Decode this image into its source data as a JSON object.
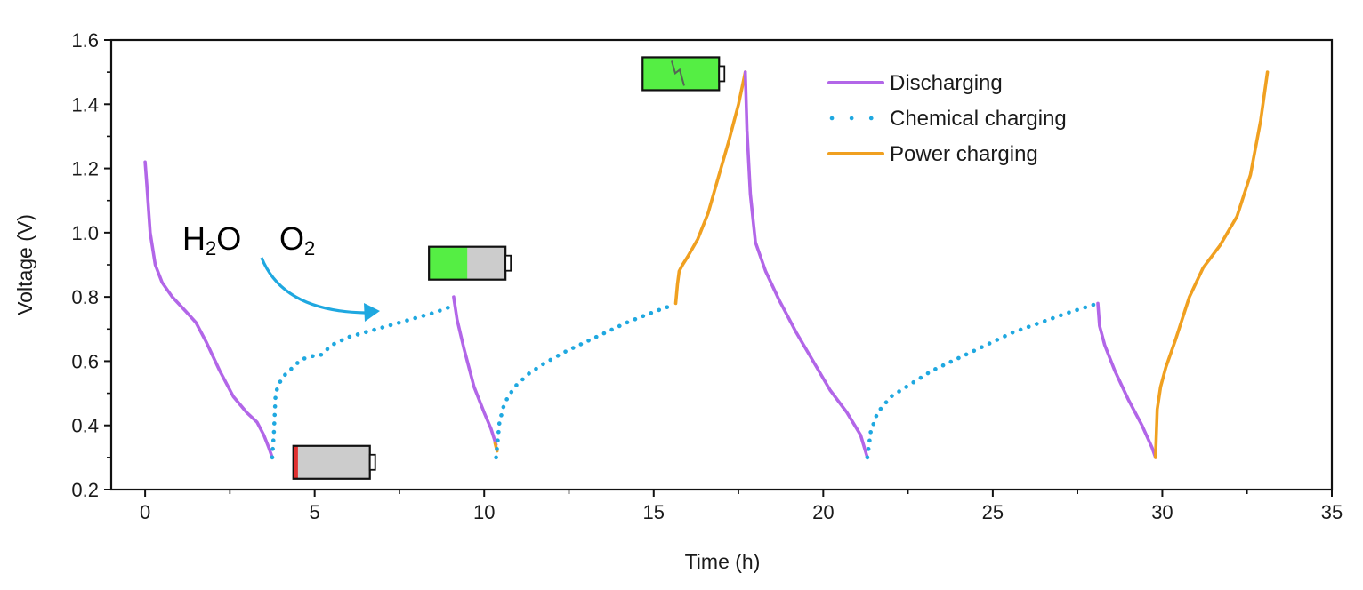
{
  "chart_data": {
    "type": "line",
    "title": "",
    "xlabel": "Time (h)",
    "ylabel": "Voltage (V)",
    "xlim": [
      -1,
      35
    ],
    "ylim": [
      0.2,
      1.6
    ],
    "xticks": [
      0,
      5,
      10,
      15,
      20,
      25,
      30,
      35
    ],
    "yticks": [
      0.2,
      0.4,
      0.6,
      0.8,
      1.0,
      1.2,
      1.4,
      1.6
    ],
    "xtick_labels": [
      "0",
      "5",
      "10",
      "15",
      "20",
      "25",
      "30",
      "35"
    ],
    "ytick_labels": [
      "0.2",
      "0.4",
      "0.6",
      "0.8",
      "1.0",
      "1.2",
      "1.4",
      "1.6"
    ],
    "grid": false,
    "legend": {
      "position": "top-right",
      "entries": [
        {
          "label": "Discharging",
          "color": "#b266e8",
          "style": "solid"
        },
        {
          "label": "Chemical charging",
          "color": "#1fa8e0",
          "style": "dotted"
        },
        {
          "label": "Power charging",
          "color": "#f0a020",
          "style": "solid"
        }
      ]
    },
    "series": [
      {
        "name": "Discharging",
        "segment": 1,
        "style": "solid",
        "color": "#b266e8",
        "x": [
          0,
          0.05,
          0.15,
          0.3,
          0.5,
          0.8,
          1.2,
          1.5,
          1.8,
          2.2,
          2.6,
          3.0,
          3.3,
          3.5,
          3.65,
          3.75
        ],
        "y": [
          1.22,
          1.15,
          1.0,
          0.9,
          0.845,
          0.8,
          0.755,
          0.72,
          0.66,
          0.57,
          0.49,
          0.44,
          0.41,
          0.37,
          0.33,
          0.3
        ]
      },
      {
        "name": "Chemical charging",
        "segment": 1,
        "style": "dotted",
        "color": "#1fa8e0",
        "x": [
          3.75,
          3.8,
          3.85,
          3.95,
          4.1,
          4.3,
          4.6,
          4.9,
          5.2,
          5.5,
          6.0,
          6.5,
          7.0,
          7.5,
          8.0,
          8.5,
          8.9,
          9.1
        ],
        "y": [
          0.3,
          0.38,
          0.5,
          0.53,
          0.555,
          0.575,
          0.605,
          0.615,
          0.62,
          0.65,
          0.675,
          0.69,
          0.705,
          0.72,
          0.735,
          0.75,
          0.765,
          0.775
        ]
      },
      {
        "name": "Discharging",
        "segment": 2,
        "style": "solid",
        "color": "#b266e8",
        "x": [
          9.1,
          9.2,
          9.4,
          9.7,
          10.0,
          10.2,
          10.35
        ],
        "y": [
          0.8,
          0.73,
          0.64,
          0.52,
          0.44,
          0.39,
          0.34
        ]
      },
      {
        "name": "Power charging",
        "segment": 1,
        "style": "solid",
        "color": "#f0a020",
        "x": [
          10.32,
          10.38
        ],
        "y": [
          0.345,
          0.32
        ]
      },
      {
        "name": "Chemical charging",
        "segment": 2,
        "style": "dotted",
        "color": "#1fa8e0",
        "x": [
          10.35,
          10.45,
          10.6,
          10.9,
          11.3,
          11.8,
          12.4,
          13.0,
          13.6,
          14.2,
          14.8,
          15.3,
          15.6
        ],
        "y": [
          0.3,
          0.41,
          0.47,
          0.52,
          0.56,
          0.595,
          0.63,
          0.66,
          0.69,
          0.72,
          0.745,
          0.765,
          0.775
        ]
      },
      {
        "name": "Power charging",
        "segment": 2,
        "style": "solid",
        "color": "#f0a020",
        "x": [
          15.65,
          15.7,
          15.75,
          15.85,
          16.0,
          16.3,
          16.6,
          16.9,
          17.2,
          17.5,
          17.7
        ],
        "y": [
          0.78,
          0.84,
          0.88,
          0.9,
          0.925,
          0.98,
          1.06,
          1.17,
          1.28,
          1.4,
          1.5
        ]
      },
      {
        "name": "Discharging",
        "segment": 3,
        "style": "solid",
        "color": "#b266e8",
        "x": [
          17.7,
          17.75,
          17.85,
          18.0,
          18.3,
          18.7,
          19.2,
          19.7,
          20.2,
          20.7,
          21.1,
          21.3
        ],
        "y": [
          1.5,
          1.32,
          1.12,
          0.97,
          0.88,
          0.79,
          0.69,
          0.6,
          0.51,
          0.44,
          0.37,
          0.3
        ]
      },
      {
        "name": "Chemical charging",
        "segment": 3,
        "style": "dotted",
        "color": "#1fa8e0",
        "x": [
          21.3,
          21.4,
          21.6,
          22.0,
          22.6,
          23.2,
          24.0,
          24.8,
          25.6,
          26.4,
          27.2,
          27.8,
          28.1
        ],
        "y": [
          0.3,
          0.38,
          0.44,
          0.49,
          0.53,
          0.57,
          0.61,
          0.65,
          0.69,
          0.72,
          0.75,
          0.77,
          0.78
        ]
      },
      {
        "name": "Discharging",
        "segment": 4,
        "style": "solid",
        "color": "#b266e8",
        "x": [
          28.1,
          28.15,
          28.3,
          28.6,
          29.0,
          29.4,
          29.7,
          29.8
        ],
        "y": [
          0.78,
          0.71,
          0.65,
          0.57,
          0.48,
          0.4,
          0.33,
          0.3
        ]
      },
      {
        "name": "Power charging",
        "segment": 3,
        "style": "solid",
        "color": "#f0a020",
        "x": [
          29.8,
          29.85,
          29.95,
          30.1,
          30.4,
          30.8,
          31.2,
          31.7,
          32.2,
          32.6,
          32.9,
          33.1
        ],
        "y": [
          0.3,
          0.45,
          0.52,
          0.58,
          0.67,
          0.8,
          0.89,
          0.96,
          1.05,
          1.18,
          1.35,
          1.5
        ]
      }
    ],
    "annotations": {
      "water": {
        "main": "H",
        "sub": "2",
        "tail": "O",
        "color": "#1fa8e0"
      },
      "oxygen": {
        "main": "O",
        "sub": "2",
        "color": "#1fa8e0"
      },
      "batteries": [
        {
          "name": "battery-empty",
          "at": [
            5.5,
            0.285
          ],
          "charge": 0.06,
          "fill": "#e03030"
        },
        {
          "name": "battery-half",
          "at": [
            9.5,
            0.905
          ],
          "charge": 0.5,
          "fill": "#55ee44"
        },
        {
          "name": "battery-full",
          "at": [
            15.8,
            1.495
          ],
          "charge": 1.0,
          "fill": "#55ee44"
        }
      ],
      "battery_shell": "#cccccc"
    }
  }
}
